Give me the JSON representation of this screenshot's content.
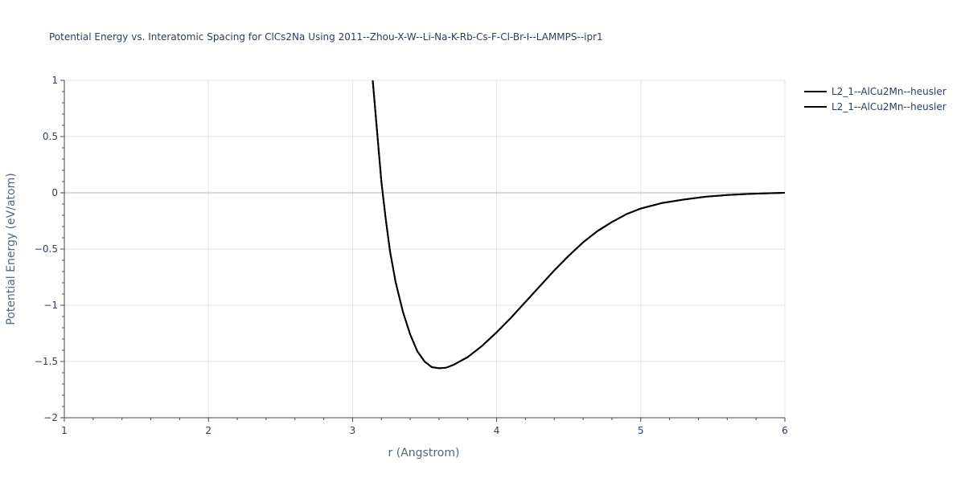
{
  "chart_data": {
    "type": "line",
    "title": "Potential Energy vs. Interatomic Spacing for ClCs2Na Using 2011--Zhou-X-W--Li-Na-K-Rb-Cs-F-Cl-Br-I--LAMMPS--ipr1",
    "xlabel": "r (Angstrom)",
    "ylabel": "Potential Energy (eV/atom)",
    "xlim": [
      1,
      6
    ],
    "ylim": [
      -2,
      1
    ],
    "x_ticks": [
      1,
      2,
      3,
      4,
      5,
      6
    ],
    "x_tick_labels": [
      "1",
      "2",
      "3",
      "4",
      "5",
      "6"
    ],
    "y_ticks": [
      -2,
      -1.5,
      -1,
      -0.5,
      0,
      0.5,
      1
    ],
    "y_tick_labels": [
      "−2",
      "−1.5",
      "−1",
      "−0.5",
      "0",
      "0.5",
      "1"
    ],
    "grid": true,
    "legend_position": "top-right",
    "series": [
      {
        "name": "L2_1--AlCu2Mn--heusler",
        "color": "#000000",
        "x": [
          3.14,
          3.17,
          3.2,
          3.23,
          3.26,
          3.3,
          3.35,
          3.4,
          3.45,
          3.5,
          3.55,
          3.6,
          3.65,
          3.7,
          3.8,
          3.9,
          4.0,
          4.1,
          4.2,
          4.3,
          4.4,
          4.5,
          4.6,
          4.7,
          4.8,
          4.9,
          5.0,
          5.15,
          5.3,
          5.45,
          5.6,
          5.75,
          5.9,
          6.0
        ],
        "y": [
          1.0,
          0.55,
          0.1,
          -0.23,
          -0.52,
          -0.8,
          -1.06,
          -1.26,
          -1.41,
          -1.5,
          -1.55,
          -1.56,
          -1.555,
          -1.53,
          -1.46,
          -1.36,
          -1.24,
          -1.11,
          -0.97,
          -0.83,
          -0.69,
          -0.56,
          -0.44,
          -0.34,
          -0.26,
          -0.19,
          -0.14,
          -0.09,
          -0.06,
          -0.035,
          -0.02,
          -0.01,
          -0.004,
          0.0
        ]
      },
      {
        "name": "L2_1--AlCu2Mn--heusler",
        "color": "#000000",
        "x": [
          3.14,
          3.17,
          3.2,
          3.23,
          3.26,
          3.3,
          3.35,
          3.4,
          3.45,
          3.5,
          3.55,
          3.6,
          3.65,
          3.7,
          3.8,
          3.9,
          4.0,
          4.1,
          4.2,
          4.3,
          4.4,
          4.5,
          4.6,
          4.7,
          4.8,
          4.9,
          5.0,
          5.15,
          5.3,
          5.45,
          5.6,
          5.75,
          5.9,
          6.0
        ],
        "y": [
          1.0,
          0.55,
          0.1,
          -0.23,
          -0.52,
          -0.8,
          -1.06,
          -1.26,
          -1.41,
          -1.5,
          -1.55,
          -1.56,
          -1.555,
          -1.53,
          -1.46,
          -1.36,
          -1.24,
          -1.11,
          -0.97,
          -0.83,
          -0.69,
          -0.56,
          -0.44,
          -0.34,
          -0.26,
          -0.19,
          -0.14,
          -0.09,
          -0.06,
          -0.035,
          -0.02,
          -0.01,
          -0.004,
          0.0
        ]
      }
    ]
  }
}
